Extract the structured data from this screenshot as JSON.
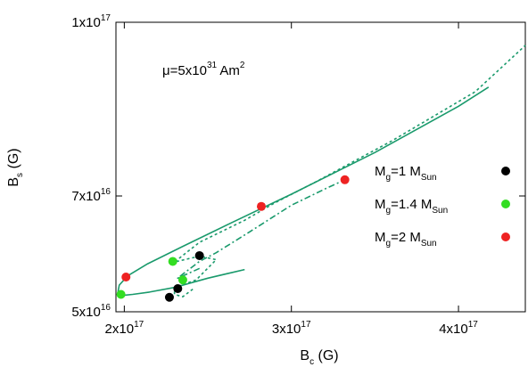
{
  "chart_data": {
    "type": "line",
    "title": "",
    "annotation": {
      "text": "μ=5x10",
      "sup": "31",
      "unit": " Am",
      "unit_sup": "2"
    },
    "xlabel": {
      "main": "B",
      "sub": "c",
      "unit": " (G)"
    },
    "ylabel": {
      "main": "B",
      "sub": "s",
      "unit": " (G)"
    },
    "xlim": [
      1.95e+17,
      4.4e+17
    ],
    "ylim": [
      5e+16,
      1e+17
    ],
    "x_ticks": [
      {
        "value": 2e+17,
        "mant": "2x10",
        "exp": "17"
      },
      {
        "value": 3e+17,
        "mant": "3x10",
        "exp": "17"
      },
      {
        "value": 4e+17,
        "mant": "4x10",
        "exp": "17"
      }
    ],
    "y_ticks": [
      {
        "value": 5e+16,
        "mant": "5x10",
        "exp": "16"
      },
      {
        "value": 7e+16,
        "mant": "7x10",
        "exp": "16"
      },
      {
        "value": 1e+17,
        "mant": "1x10",
        "exp": "17"
      }
    ],
    "colors": {
      "curve": "#1a9a6c",
      "mg1": "#000000",
      "mg14": "#33dd22",
      "mg2": "#ee2222"
    },
    "series": [
      {
        "style": "solid",
        "points": [
          [
            2.72e+17,
            5.73e+16
          ],
          [
            2.5e+17,
            5.58e+16
          ],
          [
            2.3e+17,
            5.42e+16
          ],
          [
            2.15e+17,
            5.34e+16
          ],
          [
            2.05e+17,
            5.3e+16
          ],
          [
            1.98e+17,
            5.28e+16
          ],
          [
            1.96e+17,
            5.31e+16
          ],
          [
            1.97e+17,
            5.46e+16
          ],
          [
            2.02e+17,
            5.62e+16
          ],
          [
            2.14e+17,
            5.83e+16
          ],
          [
            2.35e+17,
            6.13e+16
          ],
          [
            2.65e+17,
            6.55e+16
          ],
          [
            3e+17,
            7.03e+16
          ],
          [
            3.5e+17,
            7.75e+16
          ],
          [
            4e+17,
            8.55e+16
          ],
          [
            4.18e+17,
            8.88e+16
          ]
        ]
      },
      {
        "style": "dashed",
        "points": [
          [
            2.41e+17,
            5.39e+16
          ],
          [
            2.35e+17,
            5.26e+16
          ],
          [
            2.3e+17,
            5.3e+16
          ],
          [
            2.3e+17,
            5.42e+16
          ],
          [
            2.43e+17,
            5.55e+16
          ],
          [
            2.55e+17,
            5.9e+16
          ],
          [
            2.45e+17,
            5.96e+16
          ],
          [
            2.3e+17,
            5.86e+16
          ],
          [
            2.45e+17,
            6.2e+16
          ],
          [
            2.72e+17,
            6.58e+16
          ],
          [
            2.9e+17,
            6.88e+16
          ],
          [
            3.15e+17,
            7.25e+16
          ],
          [
            3.6e+17,
            7.95e+16
          ],
          [
            4.1e+17,
            8.8e+16
          ],
          [
            4.4e+17,
            9.6e+16
          ]
        ]
      },
      {
        "style": "dashdot",
        "points": [
          [
            2.45e+17,
            5.75e+16
          ],
          [
            2.32e+17,
            5.58e+16
          ],
          [
            2.35e+17,
            5.65e+16
          ],
          [
            2.45e+17,
            5.87e+16
          ],
          [
            2.55e+17,
            6.02e+16
          ],
          [
            2.75e+17,
            6.38e+16
          ],
          [
            3e+17,
            6.84e+16
          ],
          [
            3.2e+17,
            7.12e+16
          ],
          [
            3.32e+17,
            7.28e+16
          ]
        ]
      }
    ],
    "points": [
      {
        "group": "mg1",
        "x": 2.27e+17,
        "y": 5.25e+16
      },
      {
        "group": "mg1",
        "x": 2.32e+17,
        "y": 5.4e+16
      },
      {
        "group": "mg1",
        "x": 2.45e+17,
        "y": 5.97e+16
      },
      {
        "group": "mg14",
        "x": 1.98e+17,
        "y": 5.3e+16
      },
      {
        "group": "mg14",
        "x": 2.35e+17,
        "y": 5.55e+16
      },
      {
        "group": "mg14",
        "x": 2.29e+17,
        "y": 5.87e+16
      },
      {
        "group": "mg2",
        "x": 2.01e+17,
        "y": 5.6e+16
      },
      {
        "group": "mg2",
        "x": 2.82e+17,
        "y": 6.82e+16
      },
      {
        "group": "mg2",
        "x": 3.32e+17,
        "y": 7.28e+16
      }
    ],
    "legend": {
      "placement": "right",
      "entries": [
        {
          "group": "mg1",
          "pre": "M",
          "pre_sub": "g",
          "mid": "=1 M",
          "mid_sub": "Sun"
        },
        {
          "group": "mg14",
          "pre": "M",
          "pre_sub": "g",
          "mid": "=1.4 M",
          "mid_sub": "Sun"
        },
        {
          "group": "mg2",
          "pre": "M",
          "pre_sub": "g",
          "mid": "=2 M",
          "mid_sub": "Sun"
        }
      ]
    }
  }
}
